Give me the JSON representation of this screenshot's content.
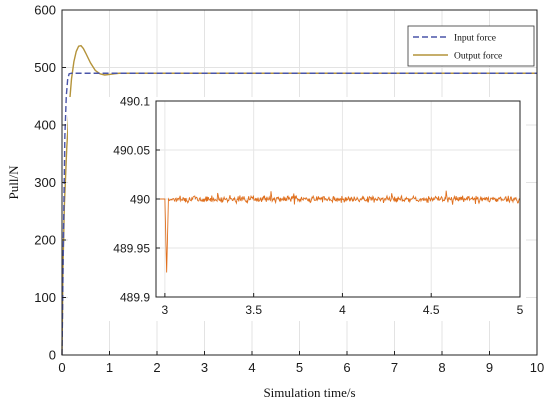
{
  "chart_data": [
    {
      "type": "line",
      "title": "",
      "xlabel": "Simulation time/s",
      "ylabel": "Pull/N",
      "xlim": [
        0,
        10
      ],
      "ylim": [
        0,
        600
      ],
      "xticks": [
        "0",
        "1",
        "2",
        "3",
        "4",
        "5",
        "6",
        "7",
        "8",
        "9",
        "10"
      ],
      "yticks": [
        "0",
        "100",
        "200",
        "300",
        "400",
        "500",
        "600"
      ],
      "legend_position": "top-right",
      "series": [
        {
          "name": "Input force",
          "color": "#4a55a8",
          "style": "dashed",
          "x": [
            0,
            0.03,
            0.06,
            0.09,
            0.12,
            0.15,
            0.2,
            10
          ],
          "y": [
            0,
            200,
            380,
            450,
            480,
            489,
            490,
            490
          ]
        },
        {
          "name": "Output force",
          "color": "#b4933a",
          "style": "solid",
          "x": [
            0,
            0.02,
            0.05,
            0.1,
            0.15,
            0.2,
            0.25,
            0.3,
            0.35,
            0.4,
            0.45,
            0.5,
            0.6,
            0.7,
            0.8,
            0.9,
            1.0,
            1.1,
            1.2,
            10
          ],
          "y": [
            0,
            150,
            260,
            360,
            430,
            480,
            510,
            528,
            537,
            538,
            533,
            525,
            508,
            495,
            489,
            487,
            488,
            489,
            490,
            490
          ]
        }
      ]
    },
    {
      "type": "line",
      "title": "",
      "xlabel": "",
      "ylabel": "",
      "xlim": [
        2.95,
        5.0
      ],
      "ylim": [
        489.9,
        490.1
      ],
      "xticks": [
        "3",
        "3.5",
        "4",
        "4.5",
        "5"
      ],
      "yticks": [
        "489.9",
        "489.95",
        "490",
        "490.05",
        "490.1"
      ],
      "series": [
        {
          "color": "#e0701e",
          "style": "solid",
          "description_points": [
            [
              2.95,
              490.0
            ],
            [
              3.0,
              490.0
            ],
            [
              3.01,
              489.925
            ],
            [
              3.02,
              490.0
            ],
            [
              5.0,
              490.0
            ]
          ],
          "noise_amplitude": 0.006
        }
      ]
    }
  ]
}
